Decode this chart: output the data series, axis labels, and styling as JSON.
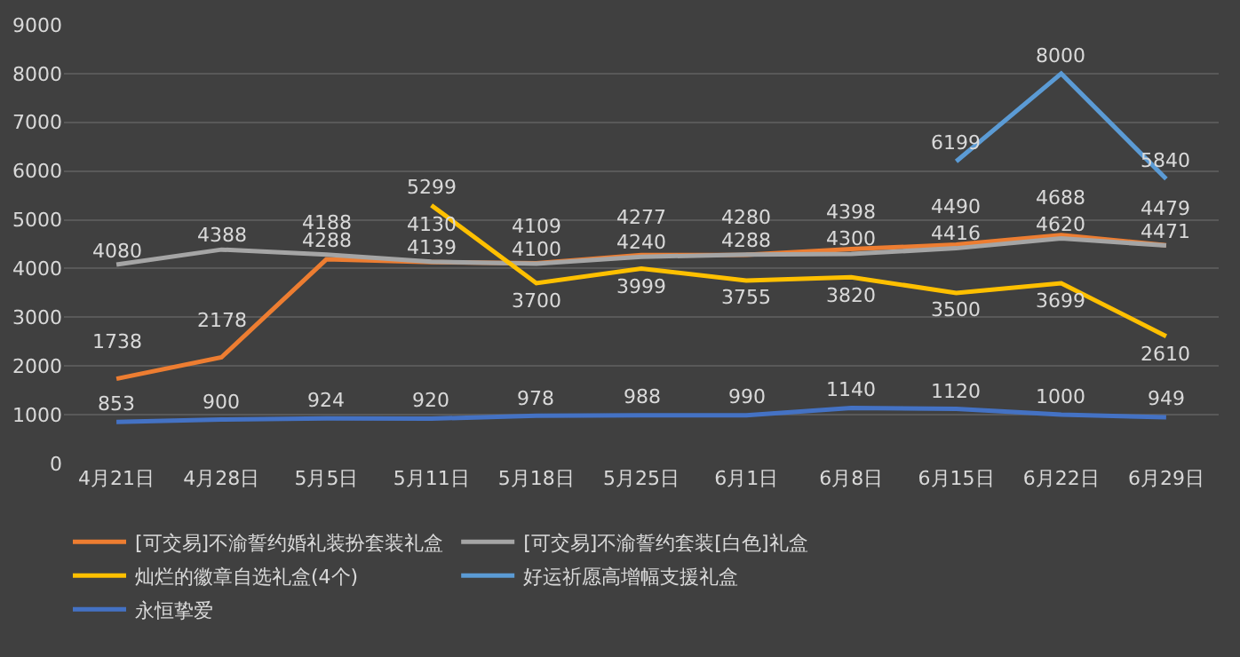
{
  "chart_data": {
    "type": "line",
    "categories": [
      "4月21日",
      "4月28日",
      "5月5日",
      "5月11日",
      "5月18日",
      "5月25日",
      "6月1日",
      "6月8日",
      "6月15日",
      "6月22日",
      "6月29日"
    ],
    "series": [
      {
        "name": "[可交易]不渝誓约婚礼装扮套装礼盒",
        "color": "#ed7d31",
        "values": [
          1738,
          2178,
          4188,
          4130,
          4109,
          4277,
          4280,
          4398,
          4490,
          4688,
          4479
        ]
      },
      {
        "name": "[可交易]不渝誓约套装[白色]礼盒",
        "color": "#a5a5a5",
        "values": [
          4080,
          4388,
          4288,
          4139,
          4100,
          4240,
          4288,
          4300,
          4416,
          4620,
          4471
        ]
      },
      {
        "name": "灿烂的徽章自选礼盒(4个)",
        "color": "#ffc000",
        "values": [
          null,
          null,
          null,
          5299,
          3700,
          3999,
          3755,
          3820,
          3500,
          3699,
          2610
        ]
      },
      {
        "name": "好运祈愿高增幅支援礼盒",
        "color": "#5b9bd5",
        "values": [
          null,
          null,
          null,
          null,
          null,
          null,
          null,
          null,
          6199,
          8000,
          5840
        ]
      },
      {
        "name": "永恒挚爱",
        "color": "#4472c4",
        "values": [
          853,
          900,
          924,
          920,
          978,
          988,
          990,
          1140,
          1120,
          1000,
          949
        ]
      }
    ],
    "ylim": [
      0,
      9000
    ],
    "yticks": [
      0,
      1000,
      2000,
      3000,
      4000,
      5000,
      6000,
      7000,
      8000,
      9000
    ],
    "grid": "y",
    "legend": "bottom",
    "data_labels": true,
    "marker": "none",
    "line_style": "solid"
  }
}
